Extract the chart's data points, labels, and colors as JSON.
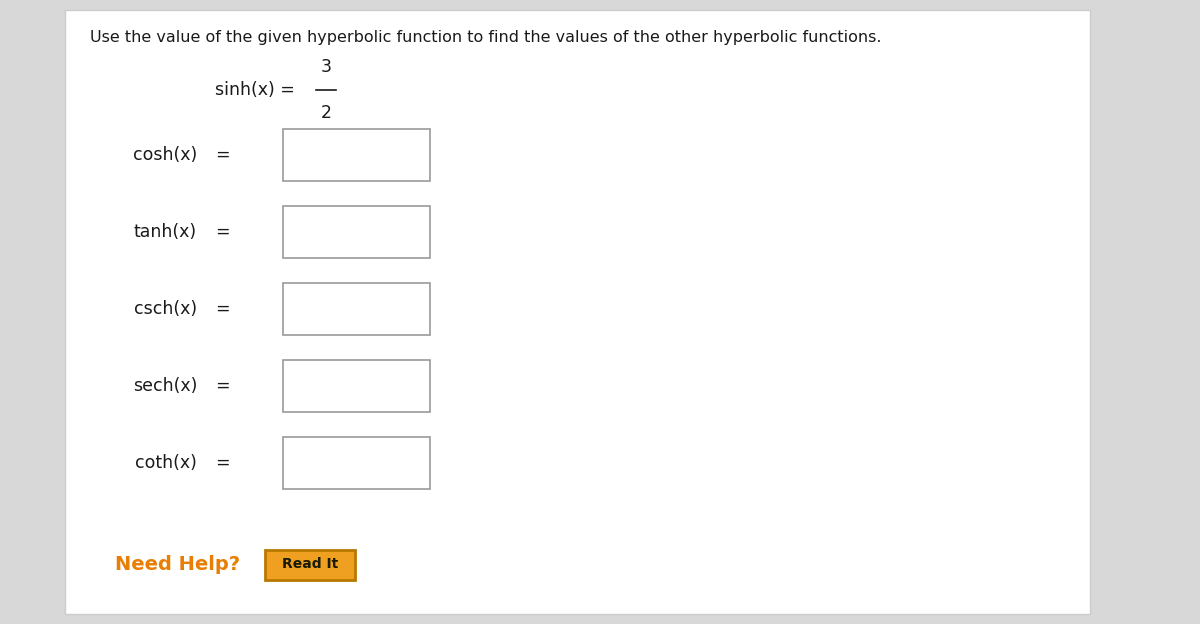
{
  "bg_color": "#d8d8d8",
  "panel_color": "#ffffff",
  "panel_border_color": "#cccccc",
  "instruction_text": "Use the value of the given hyperbolic function to find the values of the other hyperbolic functions.",
  "given_label": "sinh(x) = ",
  "given_numerator": "3",
  "given_denominator": "2",
  "functions": [
    "cosh(x)",
    "tanh(x)",
    "csch(x)",
    "sech(x)",
    "coth(x)"
  ],
  "need_help_text": "Need Help?",
  "need_help_color": "#E87E04",
  "button_text": "Read It",
  "button_bg_color": "#F0A020",
  "button_border_color": "#B87800",
  "button_text_color": "#1a1a00",
  "box_border_color": "#999999",
  "box_fill_color": "#ffffff",
  "text_color": "#1a1a1a",
  "instruction_fontsize": 11.5,
  "label_fontsize": 12.5,
  "fig_width": 12.0,
  "fig_height": 6.24,
  "dpi": 100
}
